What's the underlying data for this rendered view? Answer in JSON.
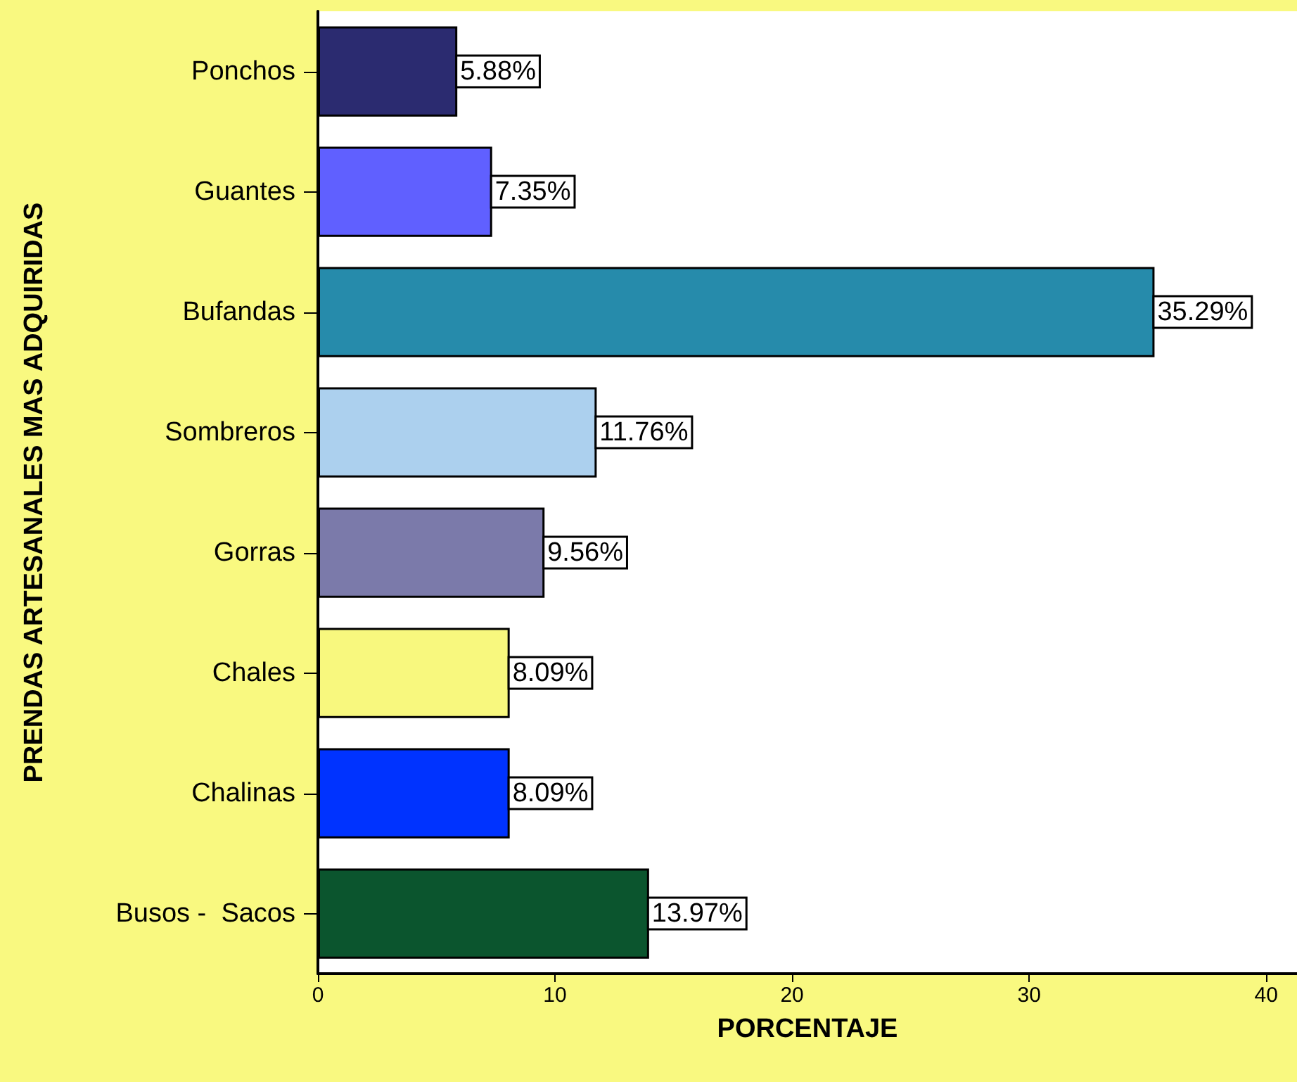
{
  "chart_data": {
    "type": "bar",
    "orientation": "horizontal",
    "xlabel": "PORCENTAJE",
    "ylabel": "PRENDAS ARTESANALES MAS ADQUIRIDAS",
    "categories": [
      "Ponchos",
      "Guantes",
      "Bufandas",
      "Sombreros",
      "Gorras",
      "Chales",
      "Chalinas",
      "Busos -  Sacos"
    ],
    "values": [
      5.88,
      7.35,
      35.29,
      11.76,
      9.56,
      8.09,
      8.09,
      13.97
    ],
    "value_labels": [
      "5.88%",
      "7.35%",
      "35.29%",
      "11.76%",
      "9.56%",
      "8.09%",
      "8.09%",
      "13.97%"
    ],
    "colors": [
      "#2b2b70",
      "#6060ff",
      "#268bab",
      "#acd0ee",
      "#7b7aaa",
      "#f8f87e",
      "#0033ff",
      "#0b552e"
    ],
    "xlim": [
      0,
      41.3
    ],
    "xticks": [
      0,
      10,
      20,
      30,
      40
    ],
    "grid": false
  }
}
